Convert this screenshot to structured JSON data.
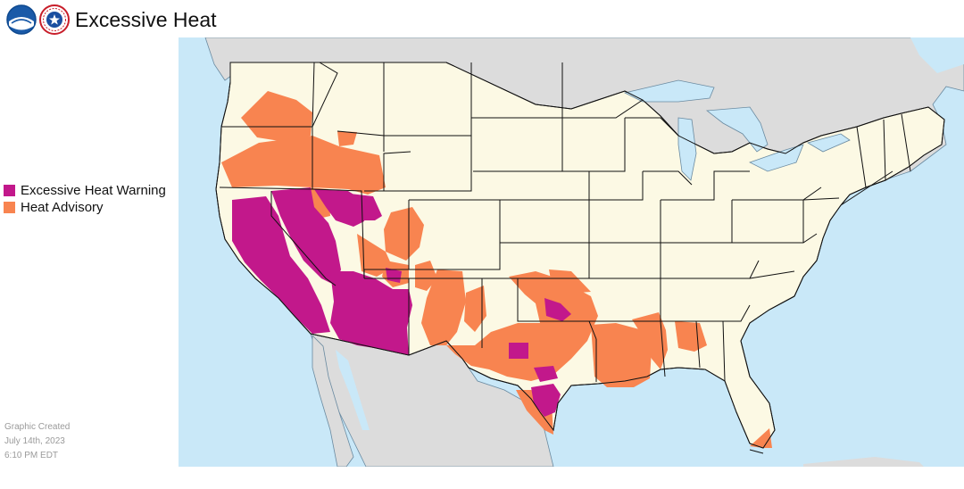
{
  "header": {
    "title": "Excessive Heat",
    "logos": [
      {
        "name": "noaa-logo",
        "text": "NOAA"
      },
      {
        "name": "nws-logo",
        "text": "NATIONAL WEATHER SERVICE"
      }
    ]
  },
  "legend": {
    "items": [
      {
        "label": "Excessive Heat Warning",
        "color": "#c2188b"
      },
      {
        "label": "Heat Advisory",
        "color": "#f88450"
      }
    ]
  },
  "created": {
    "line1": "Graphic Created",
    "line2": "July 14th, 2023",
    "line3": "6:10 PM EDT"
  },
  "colors": {
    "water": "#c9e8f8",
    "foreign_land": "#dcdcdc",
    "us_land": "#fcf9e4",
    "borders": "#111111",
    "coast": "#6a8aa0"
  }
}
